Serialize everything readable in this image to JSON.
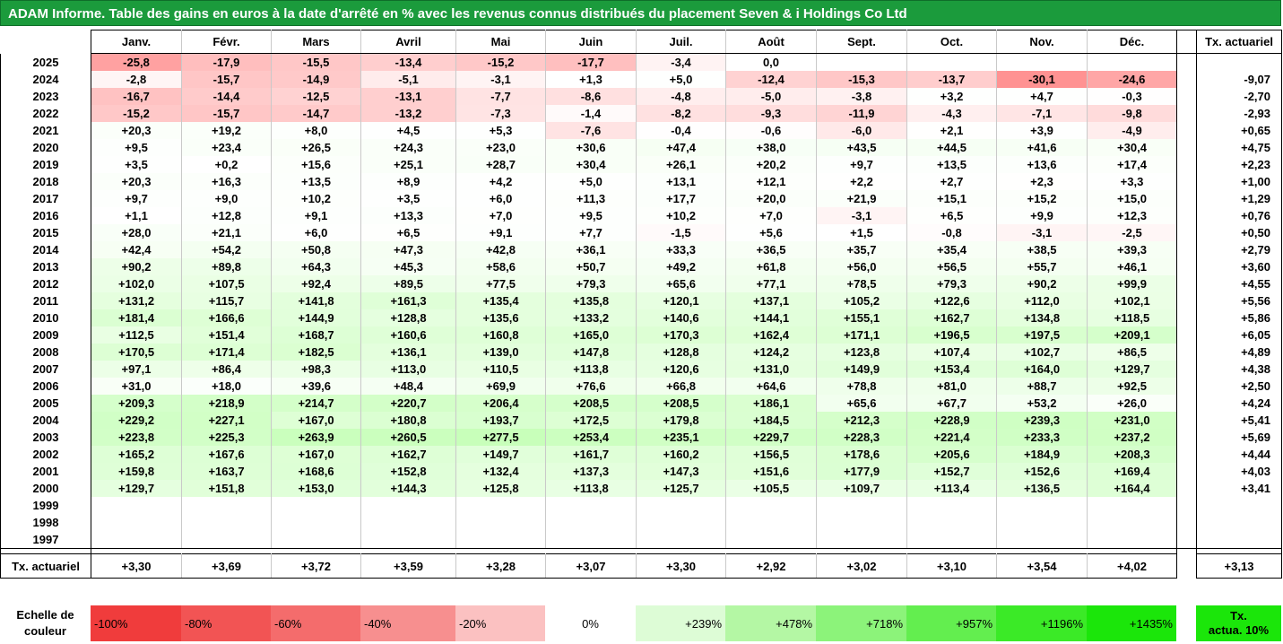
{
  "title": "ADAM Informe. Table des gains en euros à la date d'arrêté en % avec les revenus connus distribués du placement Seven & i Holdings Co Ltd",
  "months": [
    "Janv.",
    "Févr.",
    "Mars",
    "Avril",
    "Mai",
    "Juin",
    "Juil.",
    "Août",
    "Sept.",
    "Oct.",
    "Nov.",
    "Déc."
  ],
  "actuarial_header": "Tx. actuariel",
  "rows": [
    {
      "year": "2025",
      "values": [
        "-25,8",
        "-17,9",
        "-15,5",
        "-13,4",
        "-15,2",
        "-17,7",
        "-3,4",
        "0,0",
        "",
        "",
        "",
        ""
      ],
      "rate": ""
    },
    {
      "year": "2024",
      "values": [
        "-2,8",
        "-15,7",
        "-14,9",
        "-5,1",
        "-3,1",
        "+1,3",
        "+5,0",
        "-12,4",
        "-15,3",
        "-13,7",
        "-30,1",
        "-24,6"
      ],
      "rate": "-9,07"
    },
    {
      "year": "2023",
      "values": [
        "-16,7",
        "-14,4",
        "-12,5",
        "-13,1",
        "-7,7",
        "-8,6",
        "-4,8",
        "-5,0",
        "-3,8",
        "+3,2",
        "+4,7",
        "-0,3"
      ],
      "rate": "-2,70"
    },
    {
      "year": "2022",
      "values": [
        "-15,2",
        "-15,7",
        "-14,7",
        "-13,2",
        "-7,3",
        "-1,4",
        "-8,2",
        "-9,3",
        "-11,9",
        "-4,3",
        "-7,1",
        "-9,8"
      ],
      "rate": "-2,93"
    },
    {
      "year": "2021",
      "values": [
        "+20,3",
        "+19,2",
        "+8,0",
        "+4,5",
        "+5,3",
        "-7,6",
        "-0,4",
        "-0,6",
        "-6,0",
        "+2,1",
        "+3,9",
        "-4,9"
      ],
      "rate": "+0,65"
    },
    {
      "year": "2020",
      "values": [
        "+9,5",
        "+23,4",
        "+26,5",
        "+24,3",
        "+23,0",
        "+30,6",
        "+47,4",
        "+38,0",
        "+43,5",
        "+44,5",
        "+41,6",
        "+30,4"
      ],
      "rate": "+4,75"
    },
    {
      "year": "2019",
      "values": [
        "+3,5",
        "+0,2",
        "+15,6",
        "+25,1",
        "+28,7",
        "+30,4",
        "+26,1",
        "+20,2",
        "+9,7",
        "+13,5",
        "+13,6",
        "+17,4"
      ],
      "rate": "+2,23"
    },
    {
      "year": "2018",
      "values": [
        "+20,3",
        "+16,3",
        "+13,5",
        "+8,9",
        "+4,2",
        "+5,0",
        "+13,1",
        "+12,1",
        "+2,2",
        "+2,7",
        "+2,3",
        "+3,3"
      ],
      "rate": "+1,00"
    },
    {
      "year": "2017",
      "values": [
        "+9,7",
        "+9,0",
        "+10,2",
        "+3,5",
        "+6,0",
        "+11,3",
        "+17,7",
        "+20,0",
        "+21,9",
        "+15,1",
        "+15,2",
        "+15,0"
      ],
      "rate": "+1,29"
    },
    {
      "year": "2016",
      "values": [
        "+1,1",
        "+12,8",
        "+9,1",
        "+13,3",
        "+7,0",
        "+9,5",
        "+10,2",
        "+7,0",
        "-3,1",
        "+6,5",
        "+9,9",
        "+12,3"
      ],
      "rate": "+0,76"
    },
    {
      "year": "2015",
      "values": [
        "+28,0",
        "+21,1",
        "+6,0",
        "+6,5",
        "+9,1",
        "+7,7",
        "-1,5",
        "+5,6",
        "+1,5",
        "-0,8",
        "-3,1",
        "-2,5"
      ],
      "rate": "+0,50"
    },
    {
      "year": "2014",
      "values": [
        "+42,4",
        "+54,2",
        "+50,8",
        "+47,3",
        "+42,8",
        "+36,1",
        "+33,3",
        "+36,5",
        "+35,7",
        "+35,4",
        "+38,5",
        "+39,3"
      ],
      "rate": "+2,79"
    },
    {
      "year": "2013",
      "values": [
        "+90,2",
        "+89,8",
        "+64,3",
        "+45,3",
        "+58,6",
        "+50,7",
        "+49,2",
        "+61,8",
        "+56,0",
        "+56,5",
        "+55,7",
        "+46,1"
      ],
      "rate": "+3,60"
    },
    {
      "year": "2012",
      "values": [
        "+102,0",
        "+107,5",
        "+92,4",
        "+89,5",
        "+77,5",
        "+79,3",
        "+65,6",
        "+77,1",
        "+78,5",
        "+79,3",
        "+90,2",
        "+99,9"
      ],
      "rate": "+4,55"
    },
    {
      "year": "2011",
      "values": [
        "+131,2",
        "+115,7",
        "+141,8",
        "+161,3",
        "+135,4",
        "+135,8",
        "+120,1",
        "+137,1",
        "+105,2",
        "+122,6",
        "+112,0",
        "+102,1"
      ],
      "rate": "+5,56"
    },
    {
      "year": "2010",
      "values": [
        "+181,4",
        "+166,6",
        "+144,9",
        "+128,8",
        "+135,6",
        "+133,2",
        "+140,6",
        "+144,1",
        "+155,1",
        "+162,7",
        "+134,8",
        "+118,5"
      ],
      "rate": "+5,86"
    },
    {
      "year": "2009",
      "values": [
        "+112,5",
        "+151,4",
        "+168,7",
        "+160,6",
        "+160,8",
        "+165,0",
        "+170,3",
        "+162,4",
        "+171,1",
        "+196,5",
        "+197,5",
        "+209,1"
      ],
      "rate": "+6,05"
    },
    {
      "year": "2008",
      "values": [
        "+170,5",
        "+171,4",
        "+182,5",
        "+136,1",
        "+139,0",
        "+147,8",
        "+128,8",
        "+124,2",
        "+123,8",
        "+107,4",
        "+102,7",
        "+86,5"
      ],
      "rate": "+4,89"
    },
    {
      "year": "2007",
      "values": [
        "+97,1",
        "+86,4",
        "+98,3",
        "+113,0",
        "+110,5",
        "+113,8",
        "+120,6",
        "+131,0",
        "+149,9",
        "+153,4",
        "+164,0",
        "+129,7"
      ],
      "rate": "+4,38"
    },
    {
      "year": "2006",
      "values": [
        "+31,0",
        "+18,0",
        "+39,6",
        "+48,4",
        "+69,9",
        "+76,6",
        "+66,8",
        "+64,6",
        "+78,8",
        "+81,0",
        "+88,7",
        "+92,5"
      ],
      "rate": "+2,50"
    },
    {
      "year": "2005",
      "values": [
        "+209,3",
        "+218,9",
        "+214,7",
        "+220,7",
        "+206,4",
        "+208,5",
        "+208,5",
        "+186,1",
        "+65,6",
        "+67,7",
        "+53,2",
        "+26,0"
      ],
      "rate": "+4,24"
    },
    {
      "year": "2004",
      "values": [
        "+229,2",
        "+227,1",
        "+167,0",
        "+180,8",
        "+193,7",
        "+172,5",
        "+179,8",
        "+184,5",
        "+212,3",
        "+228,9",
        "+239,3",
        "+231,0"
      ],
      "rate": "+5,41"
    },
    {
      "year": "2003",
      "values": [
        "+223,8",
        "+225,3",
        "+263,9",
        "+260,5",
        "+277,5",
        "+253,4",
        "+235,1",
        "+229,7",
        "+228,3",
        "+221,4",
        "+233,3",
        "+237,2"
      ],
      "rate": "+5,69"
    },
    {
      "year": "2002",
      "values": [
        "+165,2",
        "+167,6",
        "+167,0",
        "+162,7",
        "+149,7",
        "+161,7",
        "+160,2",
        "+156,5",
        "+178,6",
        "+205,6",
        "+184,9",
        "+208,3"
      ],
      "rate": "+4,44"
    },
    {
      "year": "2001",
      "values": [
        "+159,8",
        "+163,7",
        "+168,6",
        "+152,8",
        "+132,4",
        "+137,3",
        "+147,3",
        "+151,6",
        "+177,9",
        "+152,7",
        "+152,6",
        "+169,4"
      ],
      "rate": "+4,03"
    },
    {
      "year": "2000",
      "values": [
        "+129,7",
        "+151,8",
        "+153,0",
        "+144,3",
        "+125,8",
        "+113,8",
        "+125,7",
        "+105,5",
        "+109,7",
        "+113,4",
        "+136,5",
        "+164,4"
      ],
      "rate": "+3,41"
    },
    {
      "year": "1999",
      "values": [
        "",
        "",
        "",
        "",
        "",
        "",
        "",
        "",
        "",
        "",
        "",
        ""
      ],
      "rate": ""
    },
    {
      "year": "1998",
      "values": [
        "",
        "",
        "",
        "",
        "",
        "",
        "",
        "",
        "",
        "",
        "",
        ""
      ],
      "rate": ""
    },
    {
      "year": "1997",
      "values": [
        "",
        "",
        "",
        "",
        "",
        "",
        "",
        "",
        "",
        "",
        "",
        ""
      ],
      "rate": ""
    }
  ],
  "footer": {
    "label": "Tx. actuariel",
    "values": [
      "+3,30",
      "+3,69",
      "+3,72",
      "+3,59",
      "+3,28",
      "+3,07",
      "+3,30",
      "+2,92",
      "+3,02",
      "+3,10",
      "+3,54",
      "+4,02"
    ],
    "total": "+3,13"
  },
  "scale": {
    "label_line1": "Echelle de",
    "label_line2": "couleur",
    "steps": [
      {
        "text": "-100%",
        "color": "#f03c3c"
      },
      {
        "text": "-80%",
        "color": "#f25454"
      },
      {
        "text": "-60%",
        "color": "#f46c6c"
      },
      {
        "text": "-40%",
        "color": "#f78f8f"
      },
      {
        "text": "-20%",
        "color": "#fbc1c1"
      },
      {
        "text": "0%",
        "color": "#ffffff"
      },
      {
        "text": "+239%",
        "color": "#ddfcd6"
      },
      {
        "text": "+478%",
        "color": "#b4f7a4"
      },
      {
        "text": "+718%",
        "color": "#8cf37a"
      },
      {
        "text": "+957%",
        "color": "#63ee4f"
      },
      {
        "text": "+1196%",
        "color": "#3bea27"
      },
      {
        "text": "+1435%",
        "color": "#1be60a"
      }
    ],
    "target_line1": "Tx.",
    "target_line2": "actua. 10%",
    "target_color": "#1be60a"
  },
  "colors": {
    "title_bg": "#1b9b3c",
    "negative_max": "#f03c3c",
    "positive_max": "#1be60a"
  }
}
